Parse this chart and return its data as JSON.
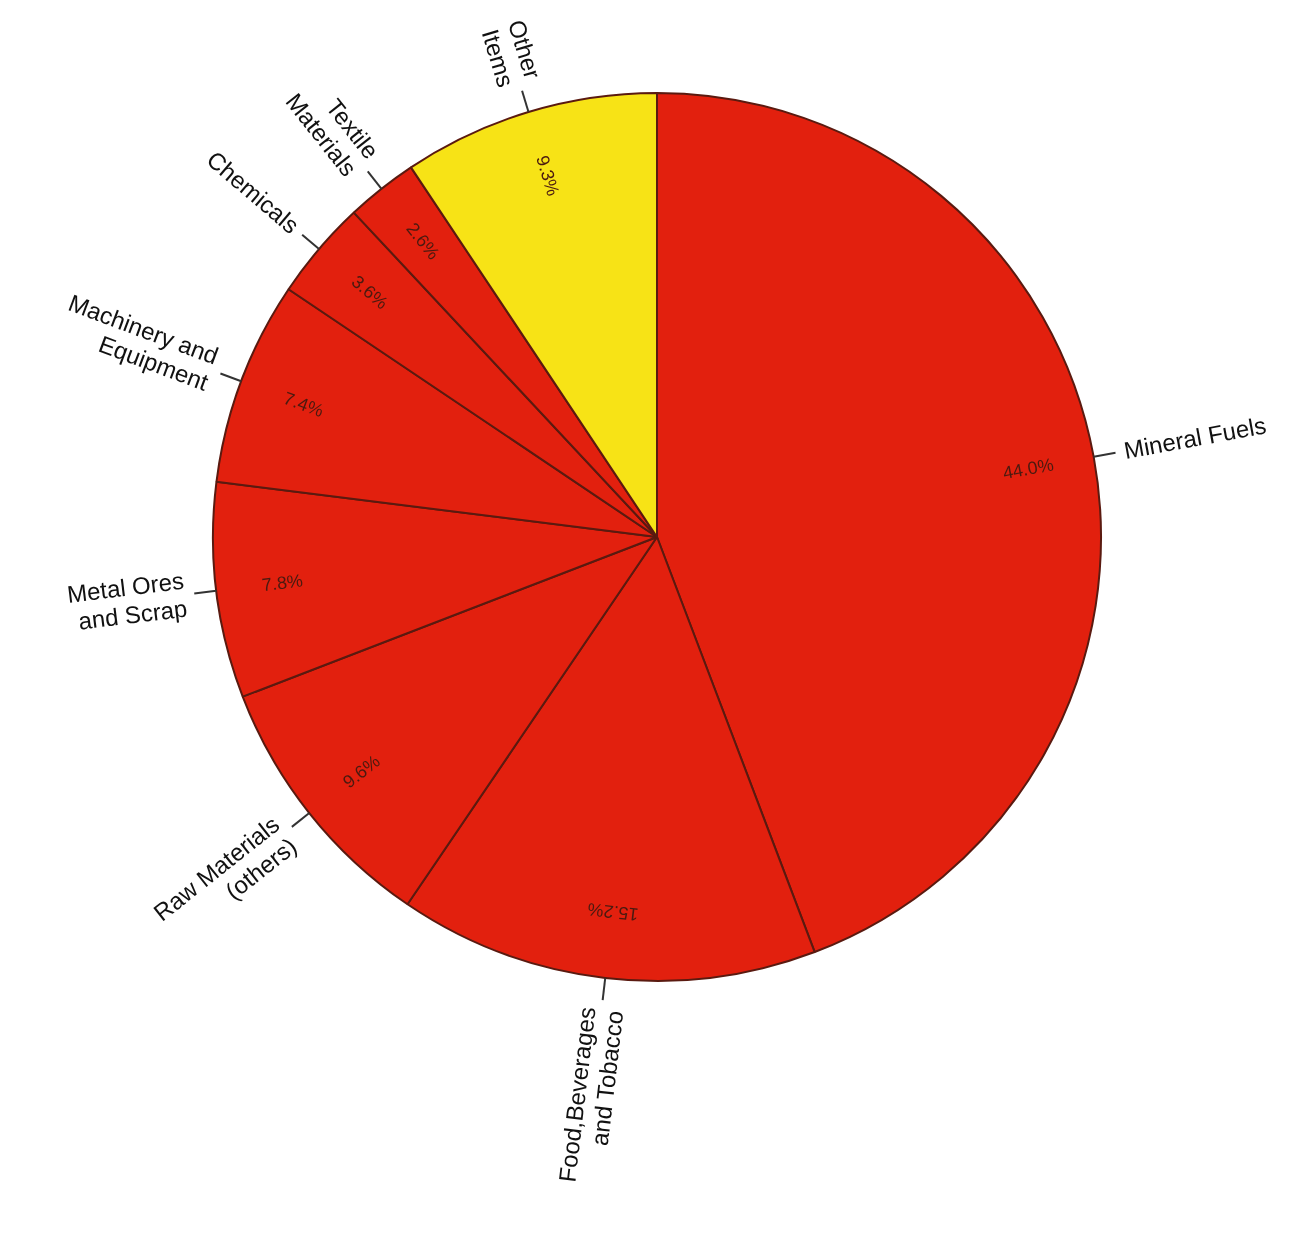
{
  "chart_data": {
    "type": "pie",
    "categories": [
      "Mineral Fuels",
      "Food,Beverages\nand Tobacco",
      "Raw Materials\n(others)",
      "Metal Ores\nand Scrap",
      "Machinery and\nEquipment",
      "Chemicals",
      "Textile\nMaterials",
      "Other\nItems"
    ],
    "values": [
      44.0,
      15.2,
      9.6,
      7.8,
      7.4,
      3.6,
      2.6,
      9.3
    ],
    "value_labels": [
      "44.0%",
      "15.2%",
      "9.6%",
      "7.8%",
      "7.4%",
      "3.6%",
      "2.6%",
      "9.3%"
    ],
    "colors": [
      "#e2200e",
      "#e2200e",
      "#e2200e",
      "#e2200e",
      "#e2200e",
      "#e2200e",
      "#e2200e",
      "#f7e316"
    ]
  }
}
